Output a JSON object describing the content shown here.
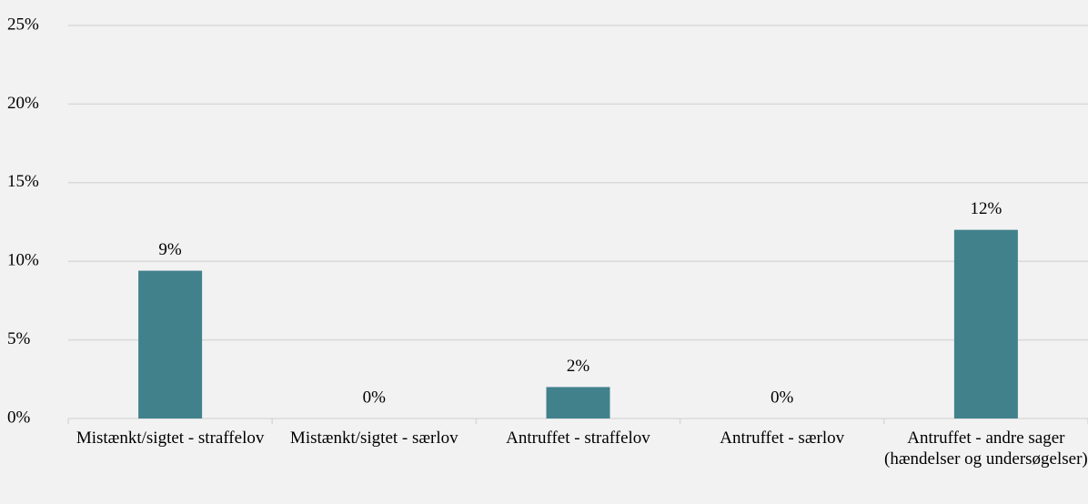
{
  "chart_data": {
    "type": "bar",
    "categories": [
      "Mistænkt/sigtet - straffelov",
      "Mistænkt/sigtet - særlov",
      "Antruffet - straffelov",
      "Antruffet - særlov",
      "Antruffet - andre sager (hændelser og undersøgelser)"
    ],
    "values": [
      9.4,
      0,
      2,
      0,
      12
    ],
    "value_labels": [
      "9%",
      "0%",
      "2%",
      "0%",
      "12%"
    ],
    "color": "#41818c",
    "ylim": [
      0,
      25
    ],
    "yticks": [
      {
        "value": 0,
        "label": "0%"
      },
      {
        "value": 5,
        "label": "5%"
      },
      {
        "value": 10,
        "label": "10%"
      },
      {
        "value": 15,
        "label": "15%"
      },
      {
        "value": 20,
        "label": "20%"
      },
      {
        "value": 25,
        "label": "25%"
      }
    ],
    "grid": true
  }
}
